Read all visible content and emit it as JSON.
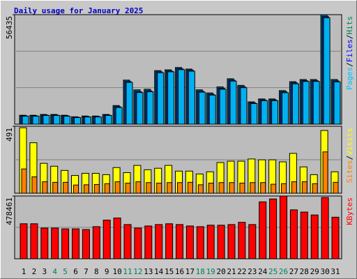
{
  "chart_data": {
    "type": "bar",
    "title": "Daily usage for January 2025",
    "categories": [
      "1",
      "2",
      "3",
      "4",
      "5",
      "6",
      "7",
      "8",
      "9",
      "10",
      "11",
      "12",
      "13",
      "14",
      "15",
      "16",
      "17",
      "18",
      "19",
      "20",
      "21",
      "22",
      "23",
      "24",
      "25",
      "26",
      "27",
      "28",
      "29",
      "30",
      "31"
    ],
    "category_colors": [
      "#000000",
      "#000000",
      "#000000",
      "#00805c",
      "#00805c",
      "#000000",
      "#000000",
      "#000000",
      "#000000",
      "#000000",
      "#00805c",
      "#00805c",
      "#000000",
      "#000000",
      "#000000",
      "#000000",
      "#000000",
      "#00805c",
      "#00805c",
      "#000000",
      "#000000",
      "#000000",
      "#000000",
      "#000000",
      "#00805c",
      "#00805c",
      "#000000",
      "#000000",
      "#000000",
      "#000000",
      "#000000"
    ],
    "legend_separator": "/",
    "panels": [
      {
        "ylim": [
          0,
          56435
        ],
        "yticks": [
          56435
        ],
        "series": [
          {
            "name": "Hits",
            "color": "#00805c",
            "bar_color": "#006080",
            "values": [
              4600,
              4600,
              5000,
              5000,
              4600,
              3800,
              4200,
              4200,
              5000,
              9600,
              22700,
              17700,
              18000,
              27600,
              28000,
              29200,
              28400,
              17700,
              16100,
              19200,
              23400,
              20000,
              11500,
              13000,
              13000,
              17300,
              21900,
              23000,
              23000,
              56435,
              23000
            ]
          },
          {
            "name": "Files",
            "color": "#0000ff",
            "bar_color": "#0040c0",
            "values": [
              4300,
              4300,
              4700,
              4700,
              4300,
              3600,
              3900,
              3900,
              4700,
              9000,
              22000,
              16800,
              17200,
              27000,
              27400,
              28600,
              27800,
              17000,
              15400,
              18500,
              22700,
              19300,
              11000,
              12500,
              12500,
              16700,
              21300,
              22400,
              22400,
              55500,
              22300
            ]
          },
          {
            "name": "Pages",
            "color": "#00c0ff",
            "bar_color": "#00b0f0",
            "values": [
              4100,
              4100,
              4500,
              4500,
              4100,
              3400,
              3700,
              3700,
              4500,
              8600,
              21500,
              16300,
              16700,
              26500,
              27000,
              28100,
              27300,
              16500,
              15000,
              18000,
              22200,
              18800,
              10600,
              12100,
              12100,
              16200,
              20800,
              22000,
              22000,
              54800,
              21800
            ]
          }
        ]
      },
      {
        "ylim": [
          0,
          491
        ],
        "yticks": [
          491
        ],
        "series": [
          {
            "name": "Visits",
            "color": "#ffff00",
            "bar_color": "#ffff00",
            "values": [
              480,
              370,
              219,
              198,
              167,
              130,
              146,
              146,
              136,
              188,
              151,
              204,
              172,
              183,
              204,
              162,
              162,
              141,
              157,
              225,
              235,
              235,
              251,
              245,
              245,
              230,
              292,
              193,
              136,
              460,
              157
            ]
          },
          {
            "name": "Sites",
            "color": "#ff8000",
            "bar_color": "#ff8000",
            "values": [
              178,
              120,
              84,
              80,
              80,
              60,
              62,
              64,
              70,
              84,
              74,
              84,
              78,
              74,
              78,
              78,
              80,
              62,
              74,
              78,
              78,
              74,
              78,
              78,
              66,
              70,
              84,
              84,
              70,
              303,
              80
            ]
          }
        ]
      },
      {
        "ylim": [
          0,
          478461
        ],
        "yticks": [
          478461
        ],
        "series": [
          {
            "name": "KBytes",
            "color": "#ff0000",
            "bar_color": "#ff0000",
            "values": [
              267000,
              267000,
              234000,
              234000,
              228000,
              228000,
              223000,
              245000,
              295000,
              311000,
              261000,
              234000,
              250000,
              261000,
              267000,
              261000,
              250000,
              245000,
              256000,
              256000,
              261000,
              278000,
              261000,
              434000,
              456000,
              478461,
              373000,
              356000,
              334000,
              467000,
              317000
            ]
          }
        ]
      }
    ]
  }
}
